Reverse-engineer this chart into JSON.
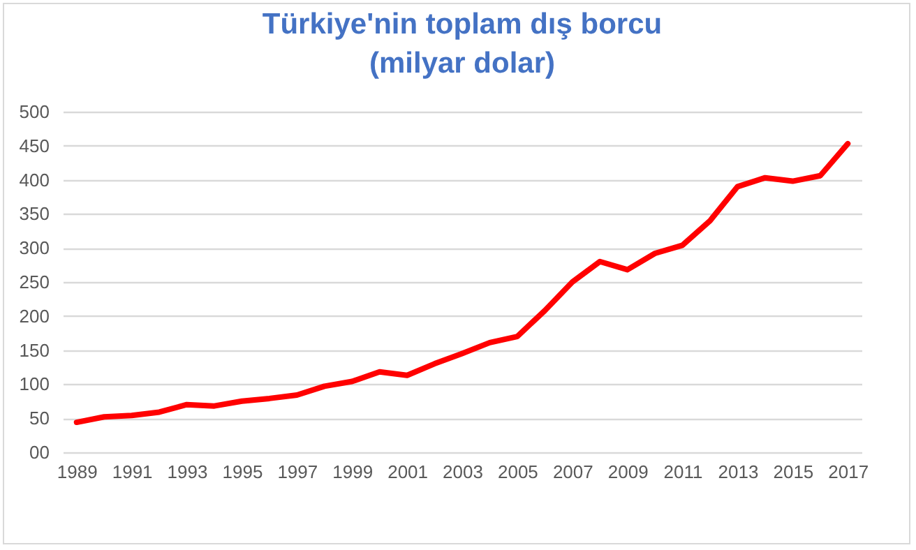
{
  "chart_data": {
    "type": "line",
    "title": [
      "Türkiye'nin toplam dış borcu",
      "(milyar dolar)"
    ],
    "categories": [
      "1989",
      null,
      "1991",
      null,
      "1993",
      null,
      "1995",
      null,
      "1997",
      null,
      "1999",
      null,
      "2001",
      null,
      "2003",
      null,
      "2005",
      null,
      "2007",
      null,
      "2009",
      null,
      "2011",
      null,
      "2013",
      null,
      "2015",
      null,
      "2017"
    ],
    "series": [
      {
        "color": "#ff0000",
        "values": [
          44,
          52,
          54,
          59,
          70,
          68,
          75,
          79,
          84,
          97,
          104,
          118,
          113,
          130,
          145,
          161,
          170,
          208,
          250,
          280,
          268,
          292,
          304,
          340,
          390,
          403,
          398,
          406,
          453
        ]
      }
    ],
    "ylim": [
      0,
      500
    ],
    "yticks": [
      {
        "value": 0,
        "label": "00"
      },
      50,
      100,
      150,
      200,
      250,
      300,
      350,
      400,
      450,
      500
    ],
    "grid": "y",
    "legend": false,
    "marker": "none",
    "line_style": "solid"
  }
}
